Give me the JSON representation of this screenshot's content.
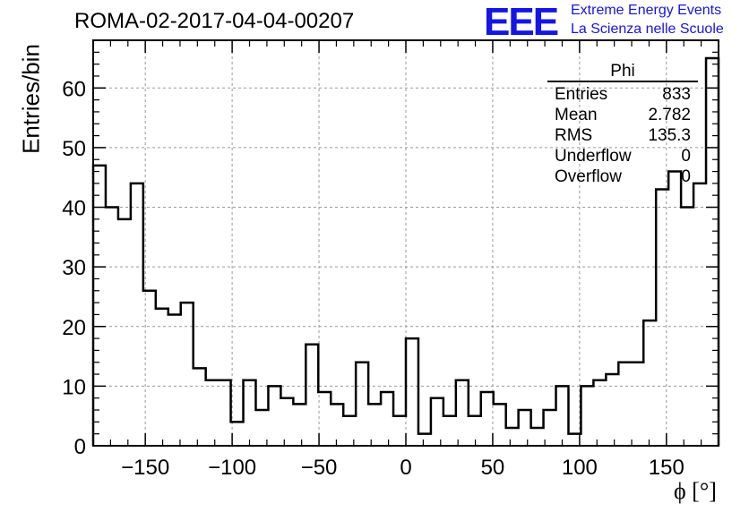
{
  "header": {
    "title": "ROMA-02-2017-04-04-00207",
    "logo_text": "EEE",
    "logo_line1": "Extreme Energy Events",
    "logo_line2": "La Scienza nelle Scuole"
  },
  "stats_box": {
    "title": "Phi",
    "rows": [
      {
        "label": "Entries",
        "value": "833"
      },
      {
        "label": "Mean",
        "value": "2.782"
      },
      {
        "label": "RMS",
        "value": "135.3"
      },
      {
        "label": "Underflow",
        "value": "0"
      },
      {
        "label": "Overflow",
        "value": "0"
      }
    ]
  },
  "colors": {
    "line": "#000000",
    "grid": "#999999",
    "logo": "#1515e6"
  },
  "chart_data": {
    "type": "bar",
    "style": "step-histogram",
    "title": "ROMA-02-2017-04-04-00207",
    "xlabel": "ϕ [°]",
    "ylabel": "Entries/bin",
    "xlim": [
      -180,
      180
    ],
    "ylim": [
      0,
      68
    ],
    "bin_width": 7.2,
    "x_ticks": [
      -150,
      -100,
      -50,
      0,
      50,
      100,
      150
    ],
    "x_tick_labels": [
      "−150",
      "−100",
      "−50",
      "0",
      "50",
      "100",
      "150"
    ],
    "y_ticks": [
      0,
      10,
      20,
      30,
      40,
      50,
      60
    ],
    "grid": true,
    "values": [
      47,
      40,
      38,
      44,
      26,
      23,
      22,
      24,
      13,
      11,
      11,
      4,
      11,
      6,
      10,
      8,
      7,
      17,
      9,
      7,
      5,
      14,
      7,
      9,
      5,
      18,
      2,
      8,
      5,
      11,
      5,
      9,
      7,
      3,
      6,
      3,
      6,
      10,
      2,
      10,
      11,
      12,
      14,
      14,
      21,
      43,
      46,
      40,
      44,
      65
    ]
  }
}
